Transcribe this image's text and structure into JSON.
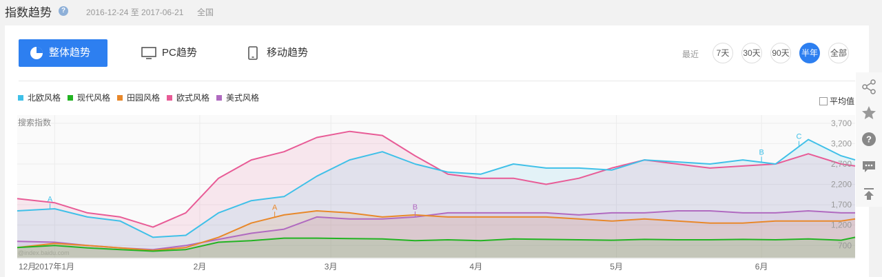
{
  "header": {
    "title": "指数趋势",
    "help_icon": "question-icon",
    "date_range": "2016-12-24 至 2017-06-21",
    "region": "全国"
  },
  "tabs": [
    {
      "label": "整体趋势",
      "icon": "pie-chart-icon",
      "active": true
    },
    {
      "label": "PC趋势",
      "icon": "monitor-icon",
      "active": false
    },
    {
      "label": "移动趋势",
      "icon": "mobile-phone-icon",
      "active": false
    }
  ],
  "range": {
    "label": "最近",
    "options": [
      "7天",
      "30天",
      "90天",
      "半年",
      "全部"
    ],
    "active": "半年"
  },
  "avg_toggle": "平均值",
  "side_tools": [
    "share-icon",
    "star-icon",
    "help-icon",
    "comment-icon",
    "back-to-top-icon"
  ],
  "colors": {
    "accent": "#2d7ff0",
    "北欧风格": "#3fc0e8",
    "现代风格": "#22b322",
    "田园风格": "#e8882a",
    "欧式风格": "#e85b96",
    "美式风格": "#b06ac0"
  },
  "chart_data": {
    "type": "line",
    "ylabel": "搜索指数",
    "watermark": "@index.baidu.com",
    "yticks": [
      700,
      1200,
      1700,
      2200,
      2700,
      3200,
      3700
    ],
    "ylim": [
      400,
      3900
    ],
    "x_tick_labels": [
      "12月",
      "2017年1月",
      "2月",
      "3月",
      "4月",
      "5月",
      "6月"
    ],
    "x_tick_dates": [
      "2016-12-01",
      "2017-01-01",
      "2017-02-01",
      "2017-03-01",
      "2017-04-01",
      "2017-05-01",
      "2017-06-01"
    ],
    "x_start": "2016-12-24",
    "x_end": "2017-06-21",
    "x": [
      "2016-12-24",
      "2017-01-01",
      "2017-01-08",
      "2017-01-15",
      "2017-01-22",
      "2017-01-29",
      "2017-02-05",
      "2017-02-12",
      "2017-02-19",
      "2017-02-26",
      "2017-03-05",
      "2017-03-12",
      "2017-03-19",
      "2017-03-26",
      "2017-04-02",
      "2017-04-09",
      "2017-04-16",
      "2017-04-23",
      "2017-04-30",
      "2017-05-07",
      "2017-05-14",
      "2017-05-21",
      "2017-05-28",
      "2017-06-04",
      "2017-06-11",
      "2017-06-18",
      "2017-06-21"
    ],
    "series": [
      {
        "name": "北欧风格",
        "values": [
          1550,
          1600,
          1400,
          1300,
          900,
          950,
          1500,
          1800,
          1900,
          2400,
          2800,
          3000,
          2700,
          2500,
          2450,
          2700,
          2600,
          2600,
          2550,
          2800,
          2750,
          2700,
          2800,
          2700,
          3300,
          2900,
          2800
        ]
      },
      {
        "name": "现代风格",
        "values": [
          650,
          700,
          640,
          600,
          560,
          600,
          780,
          820,
          880,
          880,
          870,
          860,
          820,
          840,
          820,
          860,
          850,
          840,
          830,
          850,
          840,
          840,
          850,
          840,
          860,
          830,
          900
        ]
      },
      {
        "name": "田园风格",
        "values": [
          650,
          750,
          700,
          640,
          580,
          650,
          900,
          1250,
          1450,
          1550,
          1500,
          1400,
          1450,
          1400,
          1400,
          1400,
          1400,
          1350,
          1300,
          1350,
          1300,
          1250,
          1250,
          1300,
          1300,
          1300,
          1350
        ]
      },
      {
        "name": "欧式风格",
        "values": [
          1850,
          1750,
          1500,
          1400,
          1150,
          1500,
          2350,
          2800,
          3000,
          3350,
          3500,
          3400,
          2900,
          2450,
          2350,
          2350,
          2200,
          2350,
          2600,
          2800,
          2700,
          2600,
          2650,
          2700,
          2950,
          2700,
          2650
        ]
      },
      {
        "name": "美式风格",
        "values": [
          800,
          780,
          700,
          640,
          600,
          700,
          850,
          1000,
          1100,
          1400,
          1350,
          1350,
          1400,
          1500,
          1500,
          1500,
          1500,
          1450,
          1500,
          1500,
          1550,
          1550,
          1500,
          1500,
          1550,
          1500,
          1500
        ]
      }
    ],
    "annotations": [
      {
        "text": "A",
        "series": "北欧风格",
        "x": "2016-12-31"
      },
      {
        "text": "A",
        "series": "田园风格",
        "x": "2017-02-17"
      },
      {
        "text": "B",
        "series": "美式风格",
        "x": "2017-03-19"
      },
      {
        "text": "B",
        "series": "北欧风格",
        "x": "2017-06-01"
      },
      {
        "text": "C",
        "series": "北欧风格",
        "x": "2017-06-09"
      }
    ]
  }
}
